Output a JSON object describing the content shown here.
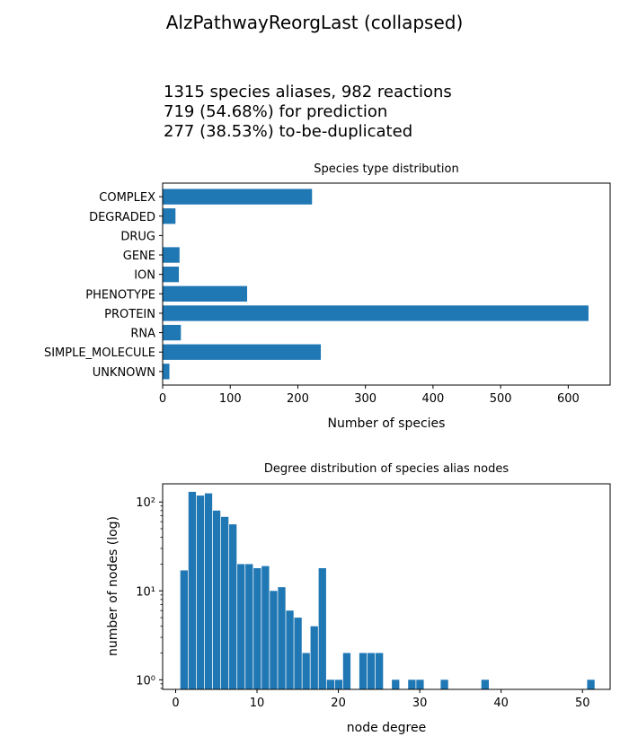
{
  "figure": {
    "title": "AlzPathwayReorgLast (collapsed)",
    "subtitle_lines": [
      "1315 species aliases, 982 reactions",
      "719 (54.68%) for prediction",
      "277 (38.53%) to-be-duplicated"
    ],
    "bar_color": "#1f77b4"
  },
  "chart_data": [
    {
      "type": "bar",
      "orientation": "horizontal",
      "title": "Species type distribution",
      "xlabel": "Number of species",
      "ylabel": "",
      "categories": [
        "COMPLEX",
        "DEGRADED",
        "DRUG",
        "GENE",
        "ION",
        "PHENOTYPE",
        "PROTEIN",
        "RNA",
        "SIMPLE_MOLECULE",
        "UNKNOWN"
      ],
      "values": [
        221,
        19,
        0,
        25,
        24,
        125,
        630,
        27,
        234,
        10
      ],
      "xlim": [
        0,
        662
      ],
      "xticks": [
        0,
        100,
        200,
        300,
        400,
        500,
        600
      ],
      "grid": false,
      "legend": "none"
    },
    {
      "type": "histogram",
      "title": "Degree distribution of species alias nodes",
      "xlabel": "node degree",
      "ylabel": "number of nodes (log)",
      "yscale": "log",
      "bin_width": 0.85,
      "bins": [
        {
          "x": 1,
          "count": 17
        },
        {
          "x": 2,
          "count": 130
        },
        {
          "x": 3,
          "count": 118
        },
        {
          "x": 4,
          "count": 125
        },
        {
          "x": 5,
          "count": 80
        },
        {
          "x": 6,
          "count": 68
        },
        {
          "x": 7,
          "count": 56
        },
        {
          "x": 8,
          "count": 20
        },
        {
          "x": 9,
          "count": 20
        },
        {
          "x": 10,
          "count": 18
        },
        {
          "x": 11,
          "count": 19
        },
        {
          "x": 12,
          "count": 10
        },
        {
          "x": 13,
          "count": 11
        },
        {
          "x": 14,
          "count": 6
        },
        {
          "x": 15,
          "count": 5
        },
        {
          "x": 16,
          "count": 2
        },
        {
          "x": 17,
          "count": 4
        },
        {
          "x": 18,
          "count": 18
        },
        {
          "x": 19,
          "count": 1
        },
        {
          "x": 20,
          "count": 1
        },
        {
          "x": 21,
          "count": 2
        },
        {
          "x": 23,
          "count": 2
        },
        {
          "x": 24,
          "count": 2
        },
        {
          "x": 25,
          "count": 2
        },
        {
          "x": 27,
          "count": 1
        },
        {
          "x": 29,
          "count": 1
        },
        {
          "x": 30,
          "count": 1
        },
        {
          "x": 33,
          "count": 1
        },
        {
          "x": 38,
          "count": 1
        },
        {
          "x": 51,
          "count": 1
        }
      ],
      "xlim": [
        -1.6,
        53.4
      ],
      "ylim": [
        0.78,
        160
      ],
      "xticks": [
        0,
        10,
        20,
        30,
        40,
        50
      ],
      "yticks": [
        {
          "value": 1,
          "label": "10⁰"
        },
        {
          "value": 10,
          "label": "10¹"
        },
        {
          "value": 100,
          "label": "10²"
        }
      ],
      "grid": false,
      "legend": "none"
    }
  ]
}
